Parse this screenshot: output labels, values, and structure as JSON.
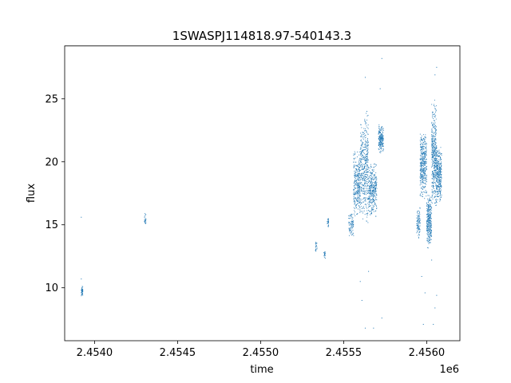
{
  "chart_data": {
    "type": "scatter",
    "title": "1SWASPJ114818.97-540143.3",
    "xlabel": "time",
    "ylabel": "flux",
    "x_offset_label": "1e6",
    "xlim": [
      2.45382,
      2.4562
    ],
    "ylim": [
      5.8,
      29.2
    ],
    "x_ticks": [
      2.454,
      2.4545,
      2.455,
      2.4555,
      2.456
    ],
    "x_tick_labels": [
      "2.4540",
      "2.4545",
      "2.4550",
      "2.4555",
      "2.4560"
    ],
    "y_ticks": [
      10,
      15,
      20,
      25
    ],
    "y_tick_labels": [
      "10",
      "15",
      "20",
      "25"
    ],
    "grid": false,
    "marker_color": "#1f77b4",
    "clusters": [
      {
        "x": [
          2.45392,
          2.45393
        ],
        "y": [
          9.2,
          10.2
        ],
        "n": 40
      },
      {
        "x": [
          2.4543,
          2.45431
        ],
        "y": [
          14.8,
          15.9
        ],
        "n": 25
      },
      {
        "x": [
          2.45533,
          2.45534
        ],
        "y": [
          12.9,
          13.7
        ],
        "n": 20
      },
      {
        "x": [
          2.45538,
          2.45539
        ],
        "y": [
          12.2,
          12.9
        ],
        "n": 18
      },
      {
        "x": [
          2.4554,
          2.45541
        ],
        "y": [
          14.8,
          15.7
        ],
        "n": 22
      },
      {
        "x": [
          2.45553,
          2.45556
        ],
        "y": [
          14.0,
          16.0
        ],
        "n": 80
      },
      {
        "x": [
          2.45556,
          2.4556
        ],
        "y": [
          15.5,
          21.0
        ],
        "n": 300
      },
      {
        "x": [
          2.4556,
          2.45565
        ],
        "y": [
          15.0,
          24.0
        ],
        "n": 420
      },
      {
        "x": [
          2.45565,
          2.4557
        ],
        "y": [
          15.5,
          20.0
        ],
        "n": 320
      },
      {
        "x": [
          2.45571,
          2.45574
        ],
        "y": [
          20.5,
          23.0
        ],
        "n": 200
      },
      {
        "x": [
          2.45594,
          2.45596
        ],
        "y": [
          13.8,
          16.5
        ],
        "n": 90
      },
      {
        "x": [
          2.45596,
          2.456
        ],
        "y": [
          17.0,
          22.5
        ],
        "n": 380
      },
      {
        "x": [
          2.456,
          2.45603
        ],
        "y": [
          13.0,
          17.5
        ],
        "n": 300
      },
      {
        "x": [
          2.45603,
          2.45606
        ],
        "y": [
          16.0,
          25.0
        ],
        "n": 420
      },
      {
        "x": [
          2.45606,
          2.45609
        ],
        "y": [
          16.5,
          21.5
        ],
        "n": 300
      }
    ],
    "points": [
      {
        "x": 2.45392,
        "y": 15.6
      },
      {
        "x": 2.45392,
        "y": 10.7
      },
      {
        "x": 2.45563,
        "y": 26.7
      },
      {
        "x": 2.45564,
        "y": 24.0
      },
      {
        "x": 2.45573,
        "y": 28.2
      },
      {
        "x": 2.45572,
        "y": 25.8
      },
      {
        "x": 2.4556,
        "y": 10.5
      },
      {
        "x": 2.45561,
        "y": 9.0
      },
      {
        "x": 2.45563,
        "y": 6.8
      },
      {
        "x": 2.45568,
        "y": 6.8
      },
      {
        "x": 2.45565,
        "y": 11.3
      },
      {
        "x": 2.45573,
        "y": 7.6
      },
      {
        "x": 2.45606,
        "y": 27.5
      },
      {
        "x": 2.45605,
        "y": 26.9
      },
      {
        "x": 2.45599,
        "y": 9.6
      },
      {
        "x": 2.45598,
        "y": 7.1
      },
      {
        "x": 2.45604,
        "y": 7.1
      },
      {
        "x": 2.45605,
        "y": 8.4
      },
      {
        "x": 2.45606,
        "y": 9.4
      },
      {
        "x": 2.45603,
        "y": 12.2
      },
      {
        "x": 2.45597,
        "y": 10.9
      }
    ]
  }
}
